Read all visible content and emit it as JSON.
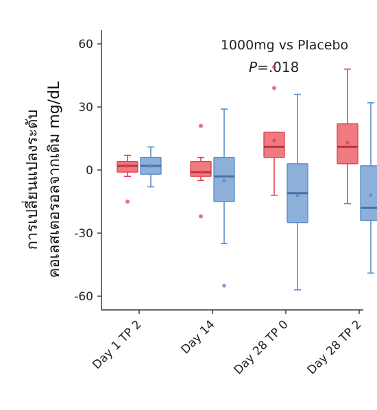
{
  "chart_data": {
    "type": "box",
    "title": "",
    "annotations": {
      "comparison": "1000mg vs Placebo",
      "p_value_prefix": "P",
      "p_value_rest": "=.018"
    },
    "ylabel": [
      "การเปลี่ยนแปลงระดับ",
      "คอเลสเตอรอลจากเดิม mg/dL"
    ],
    "xlabel": "",
    "ylim": [
      -66,
      64
    ],
    "yticks": [
      60,
      30,
      0,
      -30,
      -60
    ],
    "ytick_labels": [
      "60",
      "30",
      "0",
      "-30",
      "-60"
    ],
    "categories": [
      "Day 1 TP 2",
      "Day 14",
      "Day 28 TP 0",
      "Day 28 TP 2"
    ],
    "grid": false,
    "legend": "none",
    "series": [
      {
        "color": "#e8414c",
        "boxes": [
          {
            "whisker_low": -3,
            "q1": -1,
            "median": 2,
            "q3": 4,
            "whisker_high": 7,
            "mean": 2,
            "outliers": [
              -15
            ]
          },
          {
            "whisker_low": -5,
            "q1": -3,
            "median": -1,
            "q3": 4,
            "whisker_high": 6,
            "mean": -1,
            "outliers": [
              21,
              -22
            ]
          },
          {
            "whisker_low": -12,
            "q1": 6,
            "median": 11,
            "q3": 18,
            "whisker_high": 18,
            "mean": 14,
            "outliers": [
              49,
              39
            ]
          },
          {
            "whisker_low": -16,
            "q1": 3,
            "median": 11,
            "q3": 22,
            "whisker_high": 48,
            "mean": 13,
            "outliers": []
          }
        ]
      },
      {
        "color": "#5b8ec9",
        "boxes": [
          {
            "whisker_low": -8,
            "q1": -2,
            "median": 2,
            "q3": 6,
            "whisker_high": 11,
            "mean": 2,
            "outliers": []
          },
          {
            "whisker_low": -35,
            "q1": -15,
            "median": -3,
            "q3": 6,
            "whisker_high": 29,
            "mean": -5,
            "outliers": [
              -55
            ]
          },
          {
            "whisker_low": -57,
            "q1": -25,
            "median": -11,
            "q3": 3,
            "whisker_high": 36,
            "mean": -12,
            "outliers": []
          },
          {
            "whisker_low": -49,
            "q1": -24,
            "median": -18,
            "q3": 2,
            "whisker_high": 32,
            "mean": -12,
            "outliers": []
          }
        ]
      }
    ]
  }
}
